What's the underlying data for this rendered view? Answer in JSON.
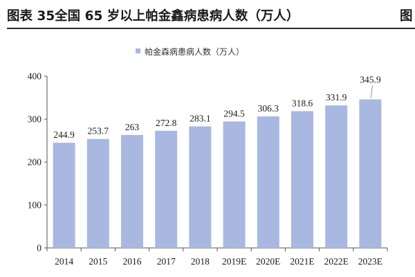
{
  "header": {
    "title": "图表 35全国 65 岁以上帕金鑫病患病人数（万人）",
    "cut_text": "图"
  },
  "chart_data": {
    "type": "bar",
    "categories": [
      "2014",
      "2015",
      "2016",
      "2017",
      "2018",
      "2019E",
      "2020E",
      "2021E",
      "2022E",
      "2023E"
    ],
    "series": [
      {
        "name": "帕金森病患病人数（万人）",
        "values": [
          244.9,
          253.7,
          263,
          272.8,
          283.1,
          294.5,
          306.3,
          318.6,
          331.9,
          345.9
        ]
      }
    ],
    "data_labels": [
      "244.9",
      "253.7",
      "263",
      "272.8",
      "283.1",
      "294.5",
      "306.3",
      "318.6",
      "331.9",
      "345.9"
    ],
    "y_ticks": [
      "0",
      "100",
      "200",
      "300",
      "400"
    ],
    "ylim": [
      0,
      400
    ],
    "bar_color": "#a8b8e0",
    "legend_position": "top-center",
    "grid": false
  }
}
